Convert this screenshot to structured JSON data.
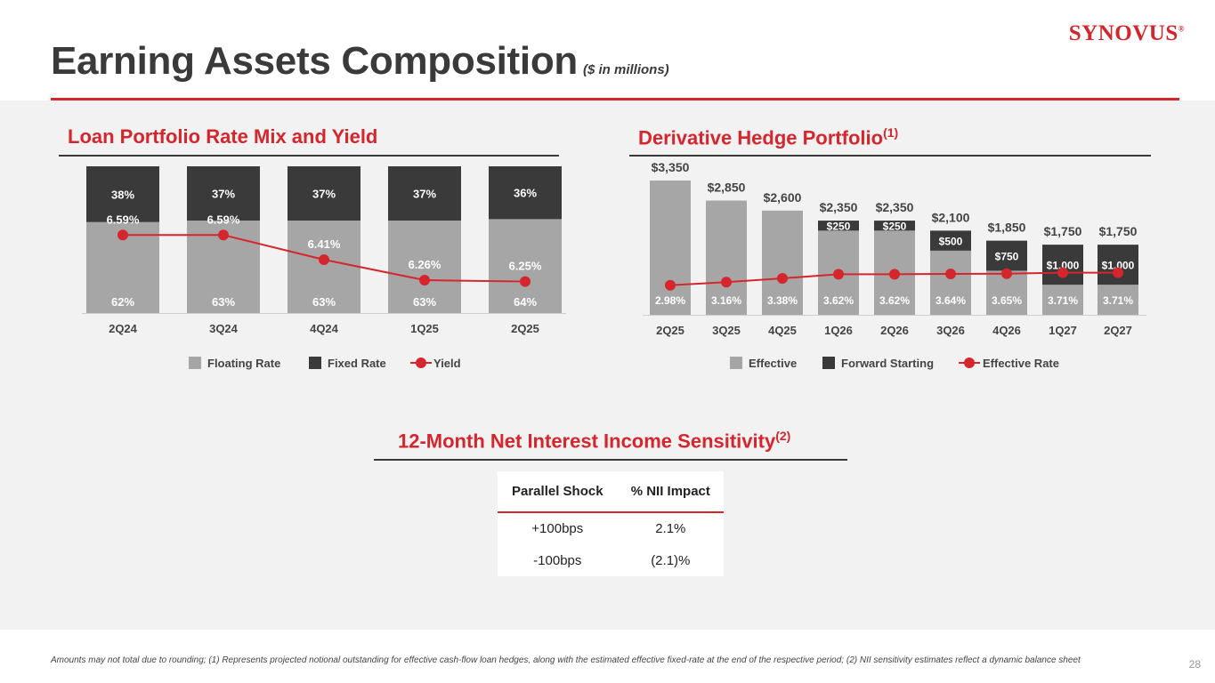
{
  "header": {
    "title": "Earning Assets Composition",
    "subtitle": "($ in millions)",
    "logo_text": "SYNOVUS",
    "logo_mark": "®"
  },
  "colors": {
    "accent": "#d5252d",
    "floating": "#a6a6a6",
    "fixed": "#3a3a3a",
    "panel_bg": "#f2f2f2"
  },
  "loan_section": {
    "title": "Loan Portfolio Rate Mix and Yield"
  },
  "hedge_section": {
    "title": "Derivative Hedge Portfolio",
    "footnote": "(1)"
  },
  "nii_section": {
    "title": "12-Month Net Interest Income Sensitivity",
    "footnote": "(2)",
    "headers": [
      "Parallel Shock",
      "% NII Impact"
    ],
    "rows": [
      {
        "shock": "+100bps",
        "impact": "2.1%"
      },
      {
        "shock": "-100bps",
        "impact": "(2.1)%"
      }
    ]
  },
  "chart_data": [
    {
      "type": "bar",
      "stacked": true,
      "categories": [
        "2Q24",
        "3Q24",
        "4Q24",
        "1Q25",
        "2Q25"
      ],
      "series": [
        {
          "name": "Floating Rate",
          "values": [
            62,
            63,
            63,
            63,
            64
          ],
          "labels": [
            "62%",
            "63%",
            "63%",
            "63%",
            "64%"
          ],
          "color": "#a6a6a6"
        },
        {
          "name": "Fixed Rate",
          "values": [
            38,
            37,
            37,
            37,
            36
          ],
          "labels": [
            "38%",
            "37%",
            "37%",
            "37%",
            "36%"
          ],
          "color": "#3a3a3a"
        }
      ],
      "line": {
        "name": "Yield",
        "values": [
          6.59,
          6.59,
          6.41,
          6.26,
          6.25
        ],
        "labels": [
          "6.59%",
          "6.59%",
          "6.41%",
          "6.26%",
          "6.25%"
        ],
        "color": "#d5252d"
      },
      "ylim": [
        0,
        100
      ],
      "legend": "bottom"
    },
    {
      "type": "bar",
      "stacked": true,
      "categories": [
        "2Q25",
        "3Q25",
        "4Q25",
        "1Q26",
        "2Q26",
        "3Q26",
        "4Q26",
        "1Q27",
        "2Q27"
      ],
      "totals": [
        "$3,350",
        "$2,850",
        "$2,600",
        "$2,350",
        "$2,350",
        "$2,100",
        "$1,850",
        "$1,750",
        "$1,750"
      ],
      "series": [
        {
          "name": "Effective",
          "values": [
            3350,
            2850,
            2600,
            2100,
            2100,
            1600,
            1100,
            750,
            750
          ],
          "color": "#a6a6a6"
        },
        {
          "name": "Forward Starting",
          "values": [
            0,
            0,
            0,
            250,
            250,
            500,
            750,
            1000,
            1000
          ],
          "labels": [
            "",
            "",
            "",
            "$250",
            "$250",
            "$500",
            "$750",
            "$1,000",
            "$1,000"
          ],
          "color": "#3a3a3a"
        }
      ],
      "line": {
        "name": "Effective Rate",
        "values": [
          2.98,
          3.16,
          3.38,
          3.62,
          3.62,
          3.64,
          3.65,
          3.71,
          3.71
        ],
        "labels": [
          "2.98%",
          "3.16%",
          "3.38%",
          "3.62%",
          "3.62%",
          "3.64%",
          "3.65%",
          "3.71%",
          "3.71%"
        ],
        "color": "#d5252d"
      },
      "ylim": [
        0,
        3350
      ],
      "legend": "bottom"
    }
  ],
  "footer": {
    "note": "Amounts may not total due to rounding; (1) Represents projected notional outstanding for effective cash-flow loan hedges, along with the estimated effective fixed-rate at the end of the respective period; (2) NII sensitivity estimates reflect a dynamic balance sheet",
    "page": "28"
  }
}
